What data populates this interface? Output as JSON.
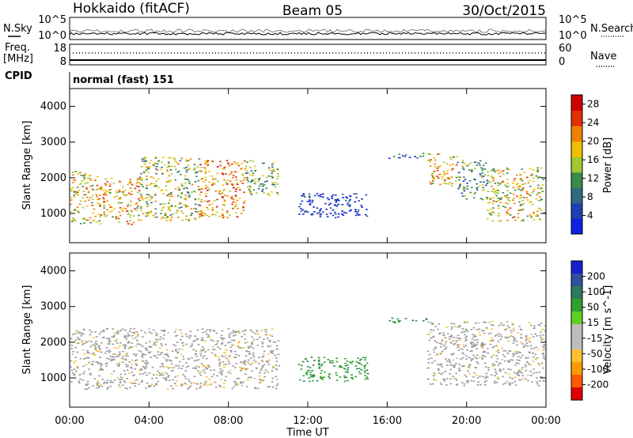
{
  "header": {
    "title": "Hokkaido (fitACF)",
    "beam": "Beam 05",
    "date": "30/Oct/2015"
  },
  "noise_panel": {
    "left_label": "N.Sky",
    "right_label": "N.Search",
    "left_ticks": [
      "10^5",
      "10^0"
    ],
    "right_ticks": [
      "10^5",
      "10^0"
    ]
  },
  "freq_panel": {
    "label_line1": "Freq.",
    "label_line2": "[MHz]",
    "left_ticks": [
      "18",
      "8"
    ],
    "right_ticks": [
      "60",
      "0"
    ],
    "right_label": "Nave"
  },
  "cpid": {
    "label": "CPID",
    "value": "normal (fast) 151"
  },
  "colors": {
    "power_scale": [
      "#1020e0",
      "#2040b0",
      "#306a80",
      "#3a8a4a",
      "#a0c830",
      "#f0c000",
      "#f08000",
      "#e03000",
      "#d00000"
    ],
    "velocity_scale": [
      "#e00000",
      "#ff5a00",
      "#ff9a00",
      "#ffc030",
      "#bdbdbd",
      "#bdbdbd",
      "#60d020",
      "#30a030",
      "#2e7a5a",
      "#3050a0",
      "#1a20d0"
    ],
    "ground_scatter": "#9a9a9a"
  },
  "chart_data": [
    {
      "type": "heatmap",
      "panel": "power",
      "ylabel": "Slant Range [km]",
      "y_ticks": [
        "1000",
        "2000",
        "3000",
        "4000"
      ],
      "ylim": [
        180,
        4500
      ],
      "x_ticks": [
        "00:00",
        "04:00",
        "08:00",
        "12:00",
        "16:00",
        "20:00",
        "00:00"
      ],
      "xlim_hours": [
        0,
        24
      ],
      "colorbar": {
        "label": "Power [dB]",
        "ticks": [
          "4",
          "8",
          "12",
          "16",
          "20",
          "24",
          "28"
        ],
        "range": [
          0,
          30
        ]
      },
      "regions": [
        {
          "t0": 0.0,
          "t1": 1.5,
          "r0": 700,
          "r1": 2200,
          "peak": 24
        },
        {
          "t0": 1.5,
          "t1": 3.5,
          "r0": 700,
          "r1": 2000,
          "peak": 26
        },
        {
          "t0": 3.5,
          "t1": 6.5,
          "r0": 800,
          "r1": 2600,
          "peak": 22
        },
        {
          "t0": 6.5,
          "t1": 8.8,
          "r0": 900,
          "r1": 2500,
          "peak": 28
        },
        {
          "t0": 8.8,
          "t1": 10.5,
          "r0": 1500,
          "r1": 2500,
          "peak": 20
        },
        {
          "t0": 11.5,
          "t1": 15.0,
          "r0": 900,
          "r1": 1600,
          "peak": 10
        },
        {
          "t0": 16.0,
          "t1": 17.8,
          "r0": 2550,
          "r1": 2700,
          "peak": 14
        },
        {
          "t0": 18.0,
          "t1": 19.5,
          "r0": 1800,
          "r1": 2700,
          "peak": 26
        },
        {
          "t0": 19.5,
          "t1": 21.0,
          "r0": 1400,
          "r1": 2500,
          "peak": 18
        },
        {
          "t0": 21.0,
          "t1": 24.0,
          "r0": 800,
          "r1": 2300,
          "peak": 24
        }
      ]
    },
    {
      "type": "heatmap",
      "panel": "velocity",
      "ylabel": "Slant Range [km]",
      "y_ticks": [
        "1000",
        "2000",
        "3000",
        "4000"
      ],
      "ylim": [
        180,
        4500
      ],
      "x_ticks": [
        "00:00",
        "04:00",
        "08:00",
        "12:00",
        "16:00",
        "20:00",
        "00:00"
      ],
      "xlabel": "Time UT",
      "xlim_hours": [
        0,
        24
      ],
      "colorbar": {
        "label": "Velocity [m s^-1]",
        "ticks": [
          "200",
          "100",
          "50",
          "15",
          "-15",
          "-50",
          "-100",
          "-200"
        ],
        "range": [
          -250,
          250
        ]
      },
      "regions": [
        {
          "t0": 0.0,
          "t1": 10.5,
          "r0": 700,
          "r1": 2400,
          "v": 0,
          "ground_scatter": true
        },
        {
          "t0": 11.5,
          "t1": 15.0,
          "r0": 900,
          "r1": 1600,
          "v": 40
        },
        {
          "t0": 16.0,
          "t1": 18.0,
          "r0": 2550,
          "r1": 2700,
          "v": 60
        },
        {
          "t0": 18.0,
          "t1": 24.0,
          "r0": 800,
          "r1": 2600,
          "v": 0,
          "ground_scatter": true
        }
      ]
    }
  ]
}
